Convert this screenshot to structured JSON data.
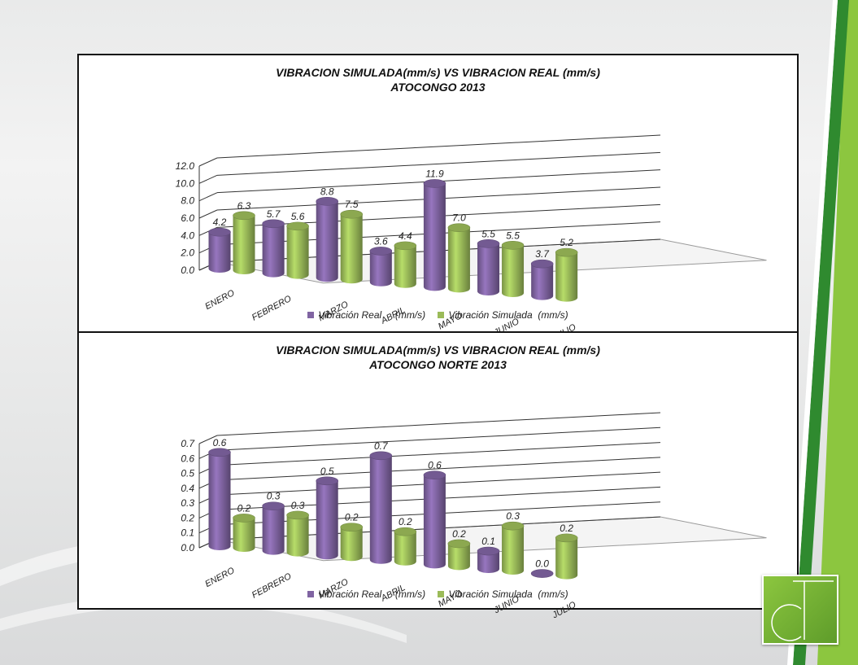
{
  "colors": {
    "real": "#8064a2",
    "simulada": "#9bbb59",
    "brand_green": "#6bb030",
    "brand_dark": "#2f8a2f"
  },
  "logo": {
    "icon": "ct-logo-icon",
    "text": "CT"
  },
  "chart_data": [
    {
      "type": "bar",
      "title": "VIBRACION SIMULADA(mm/s) VS VIBRACION REAL (mm/s)",
      "subtitle": "ATOCONGO 2013",
      "categories": [
        "ENERO",
        "FEBRERO",
        "MARZO",
        "ABRIL",
        "MAYO",
        "JUNIO",
        "JULIO"
      ],
      "series": [
        {
          "name": "Vibración Real     (mm/s)",
          "values": [
            4.2,
            5.7,
            8.8,
            3.6,
            11.9,
            5.5,
            3.7
          ],
          "labels": [
            "4.2",
            "5.7",
            "8.8",
            "3.6",
            "11.9",
            "5.5",
            "3.7"
          ]
        },
        {
          "name": "Vibración Simulada  (mm/s)",
          "values": [
            6.3,
            5.6,
            7.5,
            4.4,
            7.0,
            5.5,
            5.2
          ],
          "labels": [
            "6.3",
            "5.6",
            "7.5",
            "4.4",
            "7.0",
            "5.5",
            "5.2"
          ]
        }
      ],
      "yticks": [
        "0.0",
        "2.0",
        "4.0",
        "6.0",
        "8.0",
        "10.0",
        "12.0"
      ],
      "ylim": [
        0,
        12
      ],
      "grid": true,
      "legend": "bottom"
    },
    {
      "type": "bar",
      "title": "VIBRACION SIMULADA(mm/s) VS VIBRACION REAL (mm/s)",
      "subtitle": "ATOCONGO NORTE 2013",
      "categories": [
        "ENERO",
        "FEBRERO",
        "MARZO",
        "ABRIL",
        "MAYO",
        "JUNIO",
        "JULIO"
      ],
      "series": [
        {
          "name": "Vibración Real     (mm/s)",
          "values": [
            0.63,
            0.3,
            0.5,
            0.7,
            0.6,
            0.12,
            0.0
          ],
          "labels": [
            "0.6",
            "0.3",
            "0.5",
            "0.7",
            "0.6",
            "0.1",
            "0.0"
          ]
        },
        {
          "name": "Vibración Simulada  (mm/s)",
          "values": [
            0.2,
            0.25,
            0.2,
            0.2,
            0.15,
            0.3,
            0.25
          ],
          "labels": [
            "0.2",
            "0.3",
            "0.2",
            "0.2",
            "0.2",
            "0.3",
            "0.2"
          ]
        }
      ],
      "yticks": [
        "0.0",
        "0.1",
        "0.2",
        "0.3",
        "0.4",
        "0.5",
        "0.6",
        "0.7"
      ],
      "ylim": [
        0,
        0.7
      ],
      "grid": true,
      "legend": "bottom"
    }
  ]
}
